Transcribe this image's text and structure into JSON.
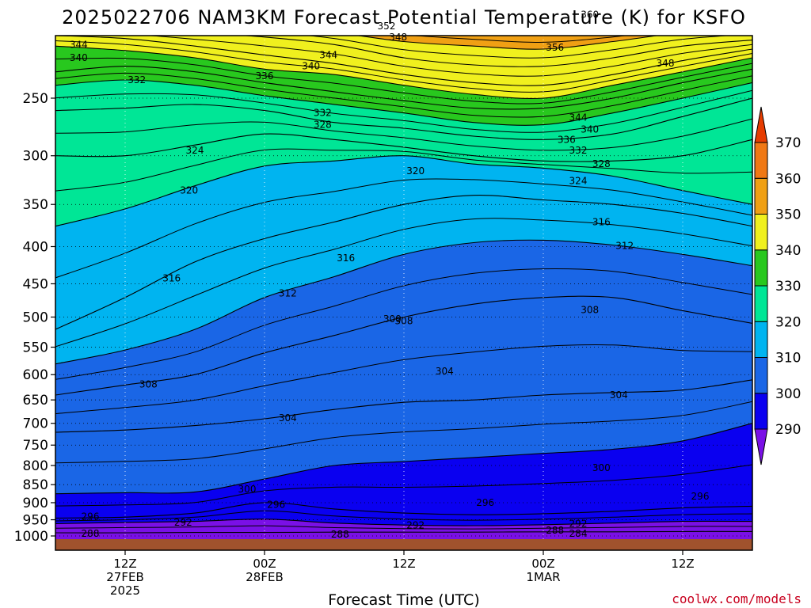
{
  "chart_data": {
    "type": "heatmap",
    "title": "2025022706 NAM3KM Forecast Potential Temperature (K) for KSFO",
    "xlabel": "Forecast Time (UTC)",
    "ylabel": "",
    "x_ticks": [
      {
        "hour": 6,
        "lines": [
          "12Z",
          "27FEB",
          "2025"
        ]
      },
      {
        "hour": 18,
        "lines": [
          "00Z",
          "28FEB"
        ]
      },
      {
        "hour": 30,
        "lines": [
          "12Z"
        ]
      },
      {
        "hour": 42,
        "lines": [
          "00Z",
          "1MAR"
        ]
      },
      {
        "hour": 54,
        "lines": [
          "12Z"
        ]
      }
    ],
    "xlim": [
      0,
      60
    ],
    "y_ticks": [
      250,
      300,
      350,
      400,
      450,
      500,
      550,
      600,
      650,
      700,
      750,
      800,
      850,
      900,
      950,
      1000
    ],
    "ylim": [
      1000,
      200
    ],
    "grid": "dotted",
    "colorbar": {
      "levels": [
        290,
        300,
        310,
        320,
        330,
        340,
        350,
        360,
        370
      ],
      "colors": [
        "#7a10e6",
        "#0a00f0",
        "#1a66e6",
        "#00b4f0",
        "#00e696",
        "#28c81e",
        "#f0f01e",
        "#f0a014",
        "#f07814",
        "#e63c00"
      ]
    },
    "terrain_color": "#a0522d",
    "series": [
      {
        "level": 288,
        "p": [
          990,
          990,
          989,
          989,
          988,
          988,
          988,
          987,
          987,
          986,
          986
        ]
      },
      {
        "level": 292,
        "p": [
          962,
          958,
          955,
          948,
          960,
          966,
          968,
          965,
          960,
          955,
          955
        ]
      },
      {
        "level": 296,
        "p": [
          945,
          942,
          930,
          900,
          918,
          930,
          935,
          932,
          925,
          915,
          910
        ]
      },
      {
        "level": 300,
        "p": [
          875,
          872,
          870,
          835,
          800,
          790,
          780,
          770,
          760,
          740,
          700
        ]
      },
      {
        "level": 304,
        "p": [
          720,
          715,
          705,
          690,
          670,
          655,
          650,
          640,
          635,
          630,
          610
        ]
      },
      {
        "level": 308,
        "p": [
          640,
          620,
          600,
          560,
          530,
          500,
          480,
          470,
          470,
          490,
          510
        ]
      },
      {
        "level": 312,
        "p": [
          580,
          555,
          520,
          470,
          440,
          410,
          395,
          392,
          398,
          410,
          425
        ]
      },
      {
        "level": 316,
        "p": [
          520,
          470,
          420,
          390,
          370,
          350,
          340,
          345,
          350,
          360,
          375
        ]
      },
      {
        "level": 320,
        "p": [
          375,
          355,
          330,
          310,
          305,
          300,
          308,
          312,
          320,
          335,
          350
        ]
      },
      {
        "level": 324,
        "p": [
          300,
          300,
          290,
          280,
          285,
          292,
          300,
          305,
          305,
          300,
          285
        ]
      },
      {
        "level": 328,
        "p": [
          260,
          258,
          255,
          260,
          270,
          275,
          282,
          285,
          280,
          265,
          250
        ]
      },
      {
        "level": 332,
        "p": [
          240,
          236,
          240,
          248,
          255,
          262,
          270,
          272,
          262,
          250,
          238
        ]
      },
      {
        "level": 336,
        "p": [
          230,
          226,
          230,
          238,
          245,
          252,
          258,
          258,
          250,
          238,
          228
        ]
      },
      {
        "level": 340,
        "p": [
          212,
          215,
          220,
          228,
          232,
          240,
          247,
          250,
          240,
          230,
          220
        ]
      },
      {
        "level": 344,
        "p": [
          205,
          207,
          212,
          218,
          224,
          232,
          238,
          240,
          232,
          222,
          214
        ]
      },
      {
        "level": 348,
        "p": [
          200,
          201,
          203,
          206,
          211,
          220,
          225,
          226,
          220,
          212,
          208
        ]
      },
      {
        "level": 352,
        "p": [
          195,
          196,
          197,
          199,
          203,
          209,
          212,
          214,
          209,
          203,
          200
        ]
      },
      {
        "level": 356,
        "p": [
          191,
          191,
          192,
          193,
          196,
          200,
          203,
          205,
          203,
          198,
          195
        ]
      },
      {
        "level": 360,
        "p": [
          187,
          187,
          188,
          188,
          190,
          192,
          195,
          197,
          196,
          192,
          190
        ]
      }
    ],
    "series_x_hours": [
      0,
      6,
      12,
      18,
      24,
      30,
      36,
      42,
      48,
      54,
      60
    ],
    "contour_labels": [
      {
        "text": "344",
        "hour": 2.0,
        "p": 211
      },
      {
        "text": "340",
        "hour": 2.0,
        "p": 220
      },
      {
        "text": "332",
        "hour": 7.0,
        "p": 236
      },
      {
        "text": "324",
        "hour": 12.0,
        "p": 295
      },
      {
        "text": "320",
        "hour": 11.5,
        "p": 335
      },
      {
        "text": "316",
        "hour": 10.0,
        "p": 442
      },
      {
        "text": "312",
        "hour": 20.0,
        "p": 464
      },
      {
        "text": "308",
        "hour": 8.0,
        "p": 619
      },
      {
        "text": "304",
        "hour": 20.0,
        "p": 688
      },
      {
        "text": "300",
        "hour": 16.5,
        "p": 862
      },
      {
        "text": "296",
        "hour": 3.0,
        "p": 940
      },
      {
        "text": "292",
        "hour": 11.0,
        "p": 958
      },
      {
        "text": "288",
        "hour": 3.0,
        "p": 993
      },
      {
        "text": "336",
        "hour": 18.0,
        "p": 233
      },
      {
        "text": "340",
        "hour": 22.0,
        "p": 226
      },
      {
        "text": "344",
        "hour": 23.5,
        "p": 218
      },
      {
        "text": "332",
        "hour": 23.0,
        "p": 262
      },
      {
        "text": "328",
        "hour": 23.0,
        "p": 272
      },
      {
        "text": "316",
        "hour": 25.0,
        "p": 415
      },
      {
        "text": "296",
        "hour": 19.0,
        "p": 906
      },
      {
        "text": "300",
        "hour": 29.0,
        "p": 503
      },
      {
        "text": "352",
        "hour": 28.5,
        "p": 199
      },
      {
        "text": "348",
        "hour": 29.5,
        "p": 206
      },
      {
        "text": "320",
        "hour": 31.0,
        "p": 315
      },
      {
        "text": "308",
        "hour": 30.0,
        "p": 506
      },
      {
        "text": "304",
        "hour": 33.5,
        "p": 594
      },
      {
        "text": "296",
        "hour": 37.0,
        "p": 900
      },
      {
        "text": "292",
        "hour": 31.0,
        "p": 967
      },
      {
        "text": "360",
        "hour": 46.0,
        "p": 192
      },
      {
        "text": "356",
        "hour": 43.0,
        "p": 213
      },
      {
        "text": "348",
        "hour": 52.5,
        "p": 224
      },
      {
        "text": "344",
        "hour": 45.0,
        "p": 266
      },
      {
        "text": "340",
        "hour": 46.0,
        "p": 276
      },
      {
        "text": "336",
        "hour": 44.0,
        "p": 285
      },
      {
        "text": "332",
        "hour": 45.0,
        "p": 295
      },
      {
        "text": "328",
        "hour": 47.0,
        "p": 308
      },
      {
        "text": "324",
        "hour": 45.0,
        "p": 325
      },
      {
        "text": "316",
        "hour": 47.0,
        "p": 370
      },
      {
        "text": "312",
        "hour": 49.0,
        "p": 399
      },
      {
        "text": "308",
        "hour": 46.0,
        "p": 489
      },
      {
        "text": "304",
        "hour": 48.5,
        "p": 640
      },
      {
        "text": "300",
        "hour": 47.0,
        "p": 806
      },
      {
        "text": "296",
        "hour": 55.5,
        "p": 882
      },
      {
        "text": "292",
        "hour": 45.0,
        "p": 962
      },
      {
        "text": "288",
        "hour": 43.0,
        "p": 982
      },
      {
        "text": "284",
        "hour": 45.0,
        "p": 993
      },
      {
        "text": "288",
        "hour": 24.5,
        "p": 995
      }
    ]
  },
  "credit": "coolwx.com/models"
}
